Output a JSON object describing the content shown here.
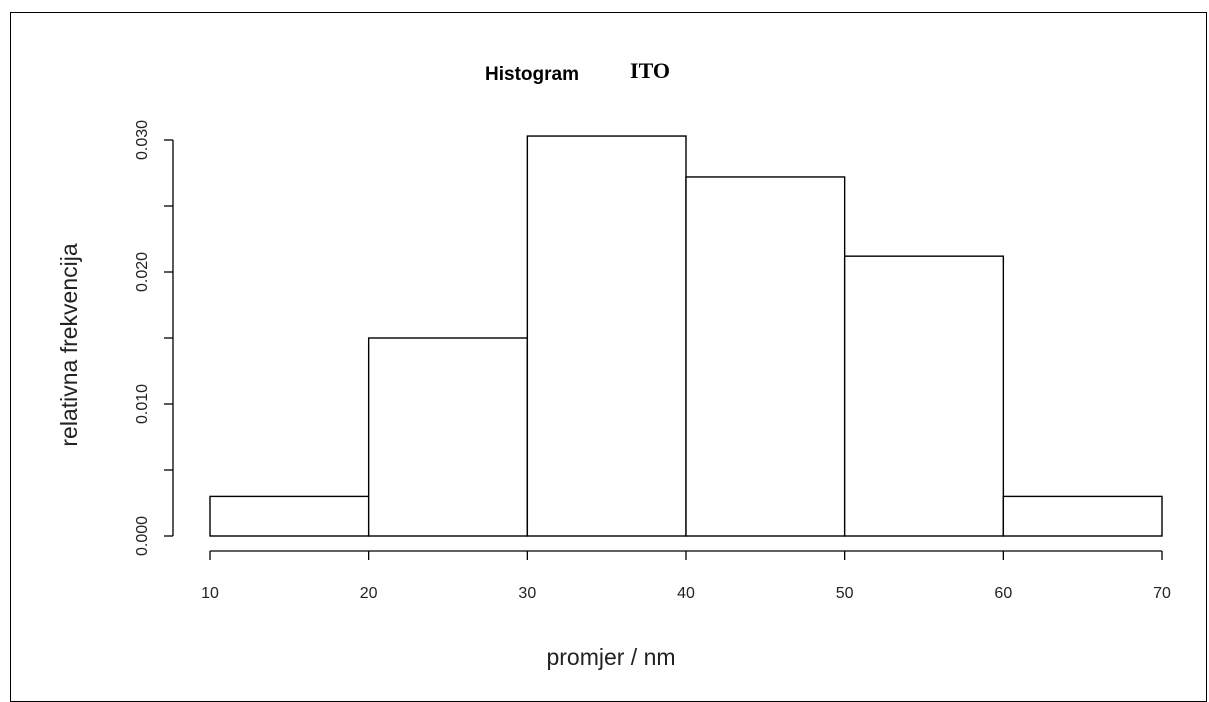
{
  "chart_data": {
    "type": "bar",
    "title": "Histogram",
    "title_suffix": "ITO",
    "xlabel": "promjer / nm",
    "ylabel": "relativna frekvencija",
    "bins": [
      {
        "from": 10,
        "to": 20,
        "value": 0.003
      },
      {
        "from": 20,
        "to": 30,
        "value": 0.015
      },
      {
        "from": 30,
        "to": 40,
        "value": 0.0303
      },
      {
        "from": 40,
        "to": 50,
        "value": 0.0272
      },
      {
        "from": 50,
        "to": 60,
        "value": 0.0212
      },
      {
        "from": 60,
        "to": 70,
        "value": 0.003
      }
    ],
    "x_ticks": [
      "10",
      "20",
      "30",
      "40",
      "50",
      "60",
      "70"
    ],
    "y_ticks": [
      "0.000",
      "0.010",
      "0.020",
      "0.030"
    ],
    "y_tick_values": [
      0,
      0.005,
      0.01,
      0.015,
      0.02,
      0.025,
      0.03
    ],
    "xlim": [
      10,
      70
    ],
    "ylim": [
      0,
      0.03
    ],
    "grid": false,
    "legend": "none"
  }
}
